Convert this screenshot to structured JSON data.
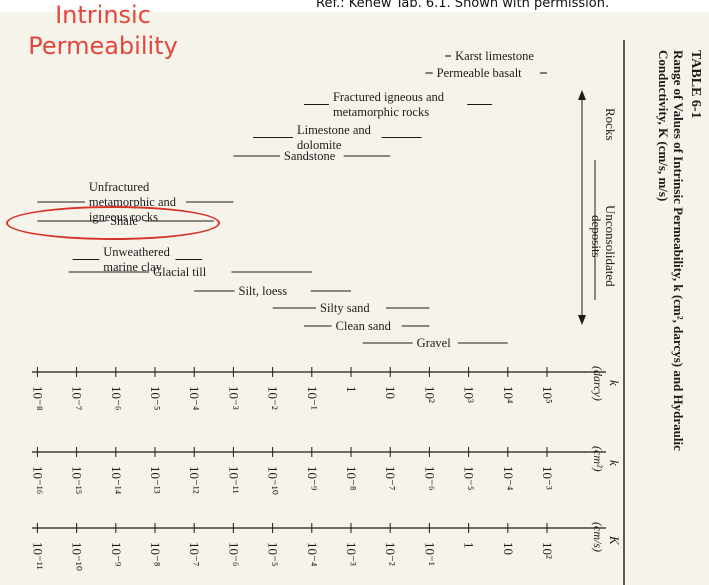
{
  "slide": {
    "title": "Intrinsic Permeability",
    "credit": "Ref.: Kehew Tab. 6.1. Shown with permission."
  },
  "table": {
    "number": "TABLE 6-1",
    "caption_line1": "Range of Values of Intrinsic Permeability, k (cm², darcys) and Hydraulic",
    "caption_line2": "Conductivity, K (cm/s, m/s)",
    "column_rocks": "Rocks",
    "column_unconsolidated_line1": "Unconsolidated",
    "column_unconsolidated_line2": "deposits",
    "scales": [
      {
        "header_symbol": "k",
        "header_unit": "(darcy)",
        "tick_labels": [
          "10⁵",
          "10⁴",
          "10³",
          "10²",
          "10",
          "1",
          "10⁻¹",
          "10⁻²",
          "10⁻³",
          "10⁻⁴",
          "10⁻⁵",
          "10⁻⁶",
          "10⁻⁷",
          "10⁻⁸"
        ]
      },
      {
        "header_symbol": "k",
        "header_unit": "(cm²)",
        "tick_labels": [
          "10⁻³",
          "10⁻⁴",
          "10⁻⁵",
          "10⁻⁶",
          "10⁻⁷",
          "10⁻⁸",
          "10⁻⁹",
          "10⁻¹⁰",
          "10⁻¹¹",
          "10⁻¹²",
          "10⁻¹³",
          "10⁻¹⁴",
          "10⁻¹⁵",
          "10⁻¹⁶"
        ]
      },
      {
        "header_symbol": "K",
        "header_unit": "(cm/s)",
        "tick_labels": [
          "10²",
          "10",
          "1",
          "10⁻¹",
          "10⁻²",
          "10⁻³",
          "10⁻⁴",
          "10⁻⁵",
          "10⁻⁶",
          "10⁻⁷",
          "10⁻⁸",
          "10⁻⁹",
          "10⁻¹⁰",
          "10⁻¹¹"
        ]
      }
    ],
    "materials": [
      {
        "group": "rocks",
        "lines": [
          "Karst limestone"
        ],
        "range_darcy_log10": [
          5.0,
          2.4
        ]
      },
      {
        "group": "rocks",
        "lines": [
          "Permeable basalt"
        ],
        "range_darcy_log10": [
          5.0,
          1.9
        ]
      },
      {
        "group": "rocks",
        "lines": [
          "Fractured igneous and",
          "metamorphic rocks"
        ],
        "range_darcy_log10": [
          3.6,
          -1.2
        ]
      },
      {
        "group": "rocks",
        "lines": [
          "Limestone and",
          "dolomite"
        ],
        "range_darcy_log10": [
          1.8,
          -2.5
        ]
      },
      {
        "group": "rocks",
        "lines": [
          "Sandstone"
        ],
        "range_darcy_log10": [
          1.0,
          -3.0
        ]
      },
      {
        "group": "rocks",
        "lines": [
          "Unfractured",
          "metamorphic and",
          "igneous rocks"
        ],
        "range_darcy_log10": [
          -3.0,
          -8.0
        ]
      },
      {
        "group": "rocks",
        "lines": [
          "Shale"
        ],
        "range_darcy_log10": [
          -3.5,
          -8.0
        ],
        "highlighted": true
      },
      {
        "group": "rocks",
        "lines": [
          "Unweathered",
          "marine clay"
        ],
        "range_darcy_log10": [
          -3.8,
          -7.1
        ]
      },
      {
        "group": "unconsolidated",
        "lines": [
          "Glacial till"
        ],
        "range_darcy_log10": [
          -1.0,
          -7.2
        ]
      },
      {
        "group": "unconsolidated",
        "lines": [
          "Silt, loess"
        ],
        "range_darcy_log10": [
          0.0,
          -4.0
        ]
      },
      {
        "group": "unconsolidated",
        "lines": [
          "Silty sand"
        ],
        "range_darcy_log10": [
          2.0,
          -2.0
        ]
      },
      {
        "group": "unconsolidated",
        "lines": [
          "Clean sand"
        ],
        "range_darcy_log10": [
          2.0,
          -1.2
        ]
      },
      {
        "group": "unconsolidated",
        "lines": [
          "Gravel"
        ],
        "range_darcy_log10": [
          4.0,
          0.3
        ]
      }
    ]
  },
  "colors": {
    "title": "#e2463c",
    "highlight_ring": "#d6332a",
    "paper": "#f6f3ea",
    "ink": "#1c1c1c"
  }
}
